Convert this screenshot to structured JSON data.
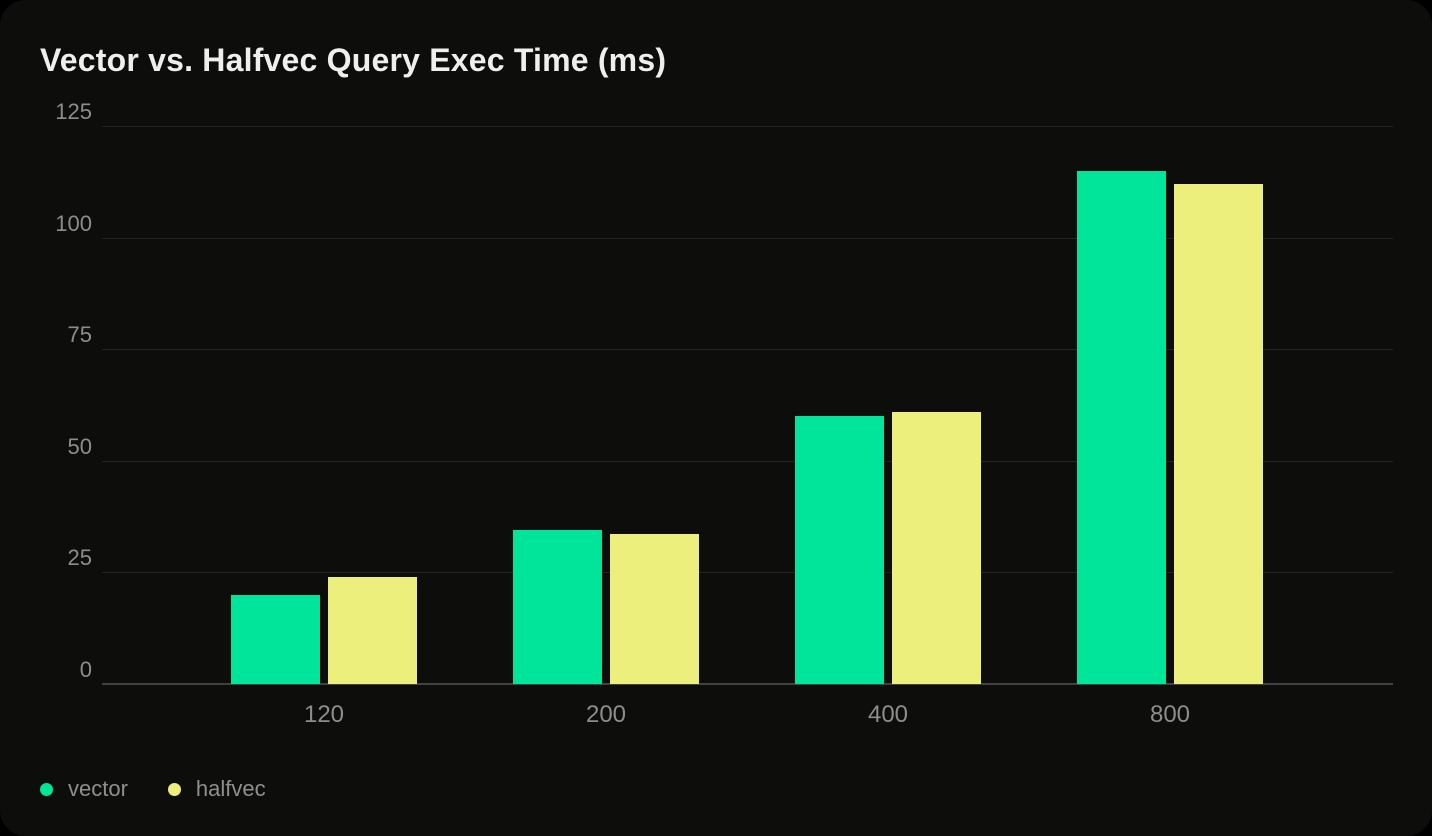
{
  "page": {
    "background": "#000000",
    "card_background": "#0D0D0C"
  },
  "chart_data": {
    "type": "bar",
    "title": "Vector vs. Halfvec Query Exec Time (ms)",
    "categories": [
      "120",
      "200",
      "400",
      "800"
    ],
    "series": [
      {
        "name": "vector",
        "color": "#00E599",
        "values": [
          20,
          34.5,
          60,
          115
        ]
      },
      {
        "name": "halfvec",
        "color": "#ECEF7B",
        "values": [
          24,
          33.5,
          61,
          112
        ]
      }
    ],
    "ylim": [
      0,
      125
    ],
    "yticks": [
      0,
      25,
      50,
      75,
      100,
      125
    ],
    "xlabel": "",
    "ylabel": "",
    "grid": true,
    "legend_position": "bottom-left",
    "style": {
      "grid_line_color": "#232323",
      "zero_line_color": "#424242",
      "tick_label_color": "#8D8D8D",
      "title_color": "#EFEFED",
      "legend_label_color": "#8F8F8F"
    }
  }
}
